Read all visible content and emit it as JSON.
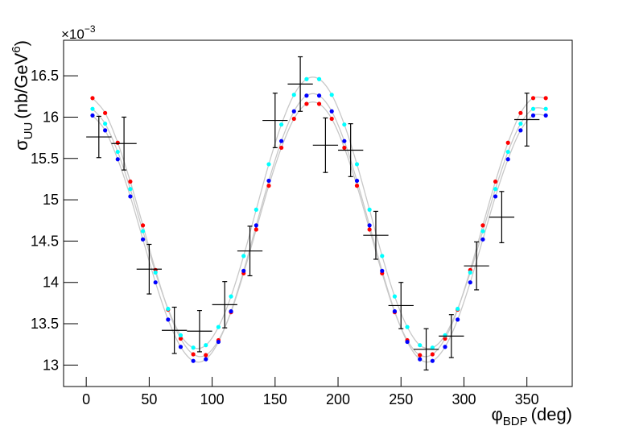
{
  "chart_data": {
    "type": "scatter",
    "xlabel": {
      "symbol": "φ",
      "subscript": "BDP",
      "unit": "(deg)"
    },
    "ylabel": {
      "symbol": "σ",
      "subscript": "UU",
      "unit": "(nb/GeV",
      "superscript": "6",
      "close": ")"
    },
    "y_exponent": {
      "base": "×10",
      "power": "−3"
    },
    "xlim": [
      -18,
      386
    ],
    "xticks": [
      0,
      50,
      100,
      150,
      200,
      250,
      300,
      350
    ],
    "ylim": [
      12.74,
      16.93
    ],
    "yticks": [
      13,
      13.5,
      14,
      14.5,
      15,
      15.5,
      16,
      16.5
    ],
    "curve_color": "#c8c8c8",
    "x": [
      5,
      15,
      25,
      35,
      45,
      55,
      65,
      75,
      85,
      95,
      105,
      115,
      125,
      135,
      145,
      155,
      165,
      175,
      185,
      195,
      205,
      215,
      225,
      235,
      245,
      255,
      265,
      275,
      285,
      295,
      305,
      315,
      325,
      335,
      345,
      355,
      365
    ],
    "series": [
      {
        "color": "#ff0000",
        "values": [
          16.23,
          16.05,
          15.69,
          15.22,
          14.69,
          14.15,
          13.67,
          13.32,
          13.13,
          13.12,
          13.3,
          13.64,
          14.11,
          14.64,
          15.17,
          15.63,
          15.98,
          16.16,
          16.16,
          15.98,
          15.63,
          15.17,
          14.64,
          14.11,
          13.64,
          13.3,
          13.12,
          13.13,
          13.32,
          13.67,
          14.15,
          14.69,
          15.22,
          15.69,
          16.05,
          16.23,
          16.23
        ]
      },
      {
        "color": "#0000ff",
        "values": [
          16.02,
          15.84,
          15.49,
          15.04,
          14.52,
          14.0,
          13.55,
          13.22,
          13.05,
          13.07,
          13.28,
          13.65,
          14.14,
          14.69,
          15.23,
          15.71,
          16.07,
          16.26,
          16.26,
          16.07,
          15.71,
          15.23,
          14.69,
          14.14,
          13.65,
          13.28,
          13.07,
          13.05,
          13.22,
          13.55,
          14.0,
          14.52,
          15.04,
          15.49,
          15.84,
          16.02,
          16.02
        ]
      },
      {
        "color": "#00ffff",
        "values": [
          16.1,
          15.92,
          15.58,
          15.13,
          14.62,
          14.12,
          13.68,
          13.36,
          13.21,
          13.24,
          13.46,
          13.83,
          14.32,
          14.88,
          15.43,
          15.91,
          16.27,
          16.46,
          16.46,
          16.27,
          15.91,
          15.43,
          14.88,
          14.32,
          13.83,
          13.46,
          13.24,
          13.21,
          13.36,
          13.68,
          14.12,
          14.62,
          15.13,
          15.58,
          15.92,
          16.1,
          16.1
        ]
      }
    ],
    "measurements": {
      "color": "#000000",
      "x": [
        10,
        30,
        50,
        70,
        90,
        110,
        130,
        150,
        170,
        190,
        210,
        230,
        250,
        270,
        290,
        310,
        330,
        350
      ],
      "xerr": [
        10,
        10,
        10,
        10,
        10,
        10,
        10,
        10,
        10,
        10,
        10,
        10,
        10,
        10,
        10,
        10,
        10,
        10
      ],
      "values": [
        15.76,
        15.68,
        14.16,
        13.42,
        13.41,
        13.73,
        14.38,
        15.96,
        16.4,
        15.66,
        15.6,
        14.57,
        13.72,
        13.19,
        13.35,
        14.2,
        14.79,
        15.97
      ],
      "yerr": [
        0.25,
        0.32,
        0.3,
        0.28,
        0.25,
        0.28,
        0.3,
        0.33,
        0.33,
        0.33,
        0.32,
        0.29,
        0.28,
        0.25,
        0.26,
        0.29,
        0.31,
        0.32
      ]
    }
  }
}
